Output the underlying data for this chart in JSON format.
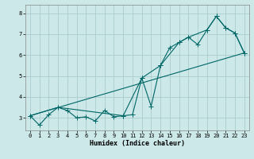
{
  "title": "",
  "xlabel": "Humidex (Indice chaleur)",
  "ylabel": "",
  "bg_color": "#cce8e8",
  "grid_color": "#aacccc",
  "line_color": "#006666",
  "xlim": [
    -0.5,
    23.5
  ],
  "ylim": [
    2.4,
    8.4
  ],
  "yticks": [
    3,
    4,
    5,
    6,
    7,
    8
  ],
  "xticks": [
    0,
    1,
    2,
    3,
    4,
    5,
    6,
    7,
    8,
    9,
    10,
    11,
    12,
    13,
    14,
    15,
    16,
    17,
    18,
    19,
    20,
    21,
    22,
    23
  ],
  "series1_x": [
    0,
    1,
    2,
    3,
    4,
    5,
    6,
    7,
    8,
    9,
    10,
    11,
    12,
    13,
    14,
    15,
    16,
    17,
    18,
    19,
    20,
    21,
    22,
    23
  ],
  "series1_y": [
    3.1,
    2.65,
    3.15,
    3.5,
    3.35,
    3.0,
    3.05,
    2.85,
    3.35,
    3.05,
    3.1,
    3.15,
    4.9,
    3.55,
    5.5,
    6.35,
    6.6,
    6.85,
    6.5,
    7.2,
    7.85,
    7.3,
    7.05,
    6.1
  ],
  "series2_x": [
    0,
    3,
    10,
    12,
    14,
    16,
    17,
    19,
    20,
    21,
    22,
    23
  ],
  "series2_y": [
    3.1,
    3.5,
    3.1,
    4.9,
    5.5,
    6.6,
    6.85,
    7.2,
    7.85,
    7.3,
    7.05,
    6.1
  ],
  "series3_x": [
    0,
    23
  ],
  "series3_y": [
    3.1,
    6.1
  ],
  "xlabel_fontsize": 6,
  "tick_fontsize": 5,
  "linewidth": 0.8,
  "markersize": 2.2
}
